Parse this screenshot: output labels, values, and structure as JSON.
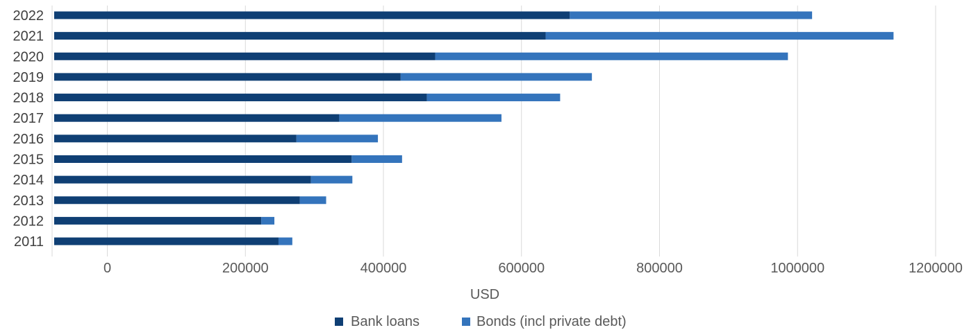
{
  "chart_data": {
    "type": "bar",
    "orientation": "horizontal",
    "stacked": true,
    "categories": [
      "2022",
      "2021",
      "2020",
      "2019",
      "2018",
      "2017",
      "2016",
      "2015",
      "2014",
      "2013",
      "2012",
      "2011"
    ],
    "series": [
      {
        "name": "Bank loans",
        "color": "#0f3f74",
        "values": [
          747000,
          712000,
          552000,
          502000,
          540000,
          413000,
          351000,
          431000,
          372000,
          356000,
          300000,
          325000
        ]
      },
      {
        "name": "Bonds (incl private debt)",
        "color": "#3474bc",
        "values": [
          351000,
          504000,
          511000,
          277000,
          193000,
          235000,
          118000,
          73000,
          60000,
          38000,
          19000,
          20000
        ]
      }
    ],
    "xlabel": "USD",
    "ylabel": "",
    "xlim": [
      -80000,
      1200000
    ],
    "x_ticks": [
      "0",
      "200000",
      "400000",
      "600000",
      "800000",
      "1000000",
      "1200000"
    ],
    "grid": true,
    "legend_position": "bottom"
  }
}
